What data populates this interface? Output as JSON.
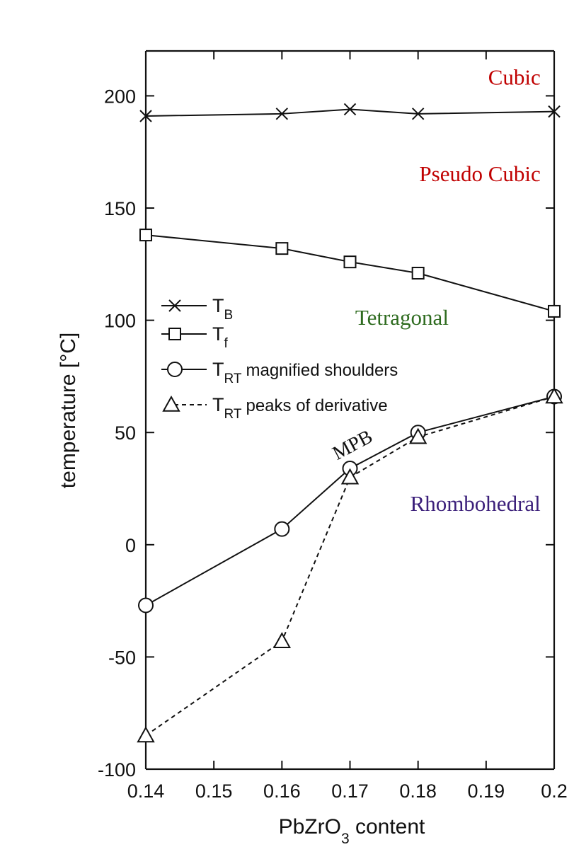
{
  "colors": {
    "axis": "#111111",
    "cubic": "#c00000",
    "pseudo_cubic": "#c00000",
    "tetragonal": "#2e6b1f",
    "rhombohedral": "#3b1f7a"
  },
  "chart_data": {
    "type": "line",
    "xlabel": "PbZrO",
    "xlabel_subscript": "3",
    "xlabel_suffix": " content",
    "ylabel": "temperature [°C]",
    "xlim": [
      0.14,
      0.2
    ],
    "ylim": [
      -100,
      220
    ],
    "x_ticks": [
      0.14,
      0.15,
      0.16,
      0.17,
      0.18,
      0.19,
      0.2
    ],
    "x_tick_labels": [
      "0.14",
      "0.15",
      "0.16",
      "0.17",
      "0.18",
      "0.19",
      "0.2"
    ],
    "y_ticks": [
      -100,
      -50,
      0,
      50,
      100,
      150,
      200
    ],
    "y_tick_labels": [
      "-100",
      "-50",
      "0",
      "50",
      "100",
      "150",
      "200"
    ],
    "grid": false,
    "legend_position": "center-left",
    "series": [
      {
        "legend_main": "T",
        "legend_sub": "B",
        "legend_text": "",
        "marker": "x",
        "line_style": "solid",
        "x": [
          0.14,
          0.16,
          0.17,
          0.18,
          0.2
        ],
        "y": [
          191,
          192,
          194,
          192,
          193
        ]
      },
      {
        "legend_main": "T",
        "legend_sub": "f",
        "legend_text": "",
        "marker": "square",
        "line_style": "solid",
        "x": [
          0.14,
          0.16,
          0.17,
          0.18,
          0.2
        ],
        "y": [
          138,
          132,
          126,
          121,
          104
        ]
      },
      {
        "legend_main": "T",
        "legend_sub": "RT",
        "legend_text": "magnified shoulders",
        "marker": "circle",
        "line_style": "solid",
        "x": [
          0.14,
          0.16,
          0.17,
          0.18,
          0.2
        ],
        "y": [
          -27,
          7,
          34,
          50,
          66
        ]
      },
      {
        "legend_main": "T",
        "legend_sub": "RT",
        "legend_text": "peaks of derivative",
        "marker": "triangle",
        "line_style": "dashed",
        "x": [
          0.14,
          0.16,
          0.17,
          0.18,
          0.2
        ],
        "y": [
          -85,
          -43,
          30,
          48,
          66
        ]
      }
    ],
    "annotations": [
      {
        "text": "Cubic",
        "x": 0.198,
        "y": 205,
        "anchor": "end",
        "color_key": "cubic",
        "rotate": 0
      },
      {
        "text": "Pseudo Cubic",
        "x": 0.198,
        "y": 162,
        "anchor": "end",
        "color_key": "pseudo_cubic",
        "rotate": 0
      },
      {
        "text": "Tetragonal",
        "x": 0.1845,
        "y": 98,
        "anchor": "end",
        "color_key": "tetragonal",
        "rotate": 0
      },
      {
        "text": "MPB",
        "x": 0.1708,
        "y": 42,
        "anchor": "middle",
        "color_key": "axis",
        "rotate": -28
      },
      {
        "text": "Rhombohedral",
        "x": 0.198,
        "y": 15,
        "anchor": "end",
        "color_key": "rhombohedral",
        "rotate": 0
      }
    ]
  }
}
